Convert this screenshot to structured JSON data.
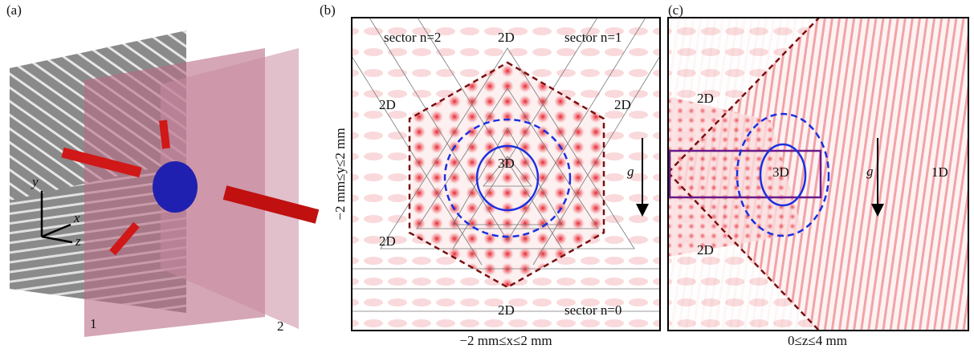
{
  "panels": [
    {
      "label": "(a)",
      "axes": [
        "y",
        "x",
        "z"
      ],
      "planes": [
        "1",
        "2"
      ]
    },
    {
      "label": "(b)",
      "regions": [
        "sector n=2",
        "2D",
        "sector n=1",
        "2D",
        "2D",
        "3D",
        "g",
        "2D",
        "2D",
        "sector n=0"
      ],
      "x_label": "−2 mm≤x≤2 mm",
      "y_label": "−2 mm≤y≤2 mm"
    },
    {
      "label": "(c)",
      "regions": [
        "2D",
        "3D",
        "g",
        "1D",
        "2D"
      ],
      "x_label": "0≤z≤4 mm"
    }
  ]
}
